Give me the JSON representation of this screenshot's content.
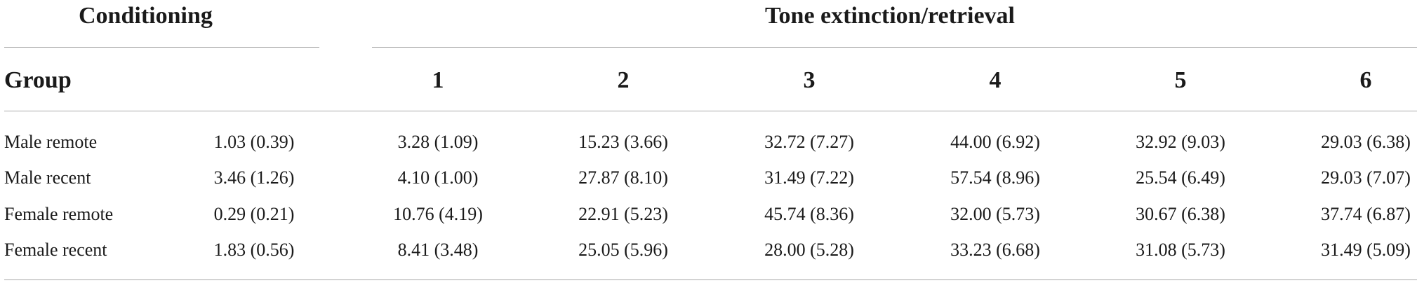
{
  "table": {
    "conditioning_header": "Conditioning",
    "extinction_header": "Tone extinction/retrieval",
    "group_header": "Group",
    "session_headers": [
      "1",
      "2",
      "3",
      "4",
      "5",
      "6"
    ],
    "rows": [
      {
        "group": "Male remote",
        "conditioning": "1.03 (0.39)",
        "sessions": [
          "3.28 (1.09)",
          "15.23 (3.66)",
          "32.72 (7.27)",
          "44.00 (6.92)",
          "32.92 (9.03)",
          "29.03 (6.38)"
        ]
      },
      {
        "group": "Male recent",
        "conditioning": "3.46 (1.26)",
        "sessions": [
          "4.10 (1.00)",
          "27.87 (8.10)",
          "31.49 (7.22)",
          "57.54 (8.96)",
          "25.54 (6.49)",
          "29.03 (7.07)"
        ]
      },
      {
        "group": "Female remote",
        "conditioning": "0.29 (0.21)",
        "sessions": [
          "10.76 (4.19)",
          "22.91 (5.23)",
          "45.74 (8.36)",
          "32.00 (5.73)",
          "30.67 (6.38)",
          "37.74 (6.87)"
        ]
      },
      {
        "group": "Female recent",
        "conditioning": "1.83 (0.56)",
        "sessions": [
          "8.41 (3.48)",
          "25.05 (5.96)",
          "28.00 (5.28)",
          "33.23 (6.68)",
          "31.08 (5.73)",
          "31.49 (5.09)"
        ]
      }
    ]
  }
}
